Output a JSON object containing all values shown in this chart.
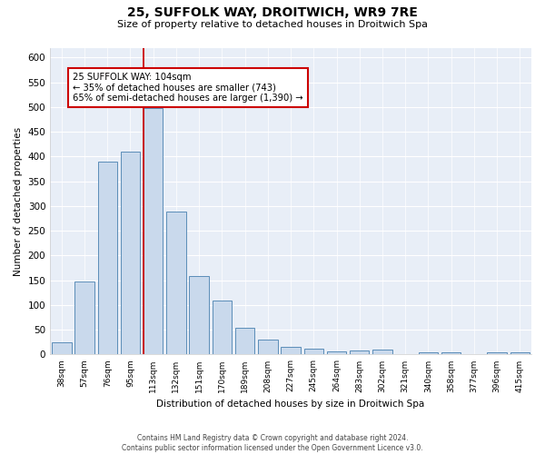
{
  "title": "25, SUFFOLK WAY, DROITWICH, WR9 7RE",
  "subtitle": "Size of property relative to detached houses in Droitwich Spa",
  "xlabel": "Distribution of detached houses by size in Droitwich Spa",
  "ylabel": "Number of detached properties",
  "bar_color": "#c9d9ec",
  "bar_edge_color": "#5b8db8",
  "background_color": "#e8eef7",
  "grid_color": "#ffffff",
  "categories": [
    "38sqm",
    "57sqm",
    "76sqm",
    "95sqm",
    "113sqm",
    "132sqm",
    "151sqm",
    "170sqm",
    "189sqm",
    "208sqm",
    "227sqm",
    "245sqm",
    "264sqm",
    "283sqm",
    "302sqm",
    "321sqm",
    "340sqm",
    "358sqm",
    "377sqm",
    "396sqm",
    "415sqm"
  ],
  "values": [
    25,
    148,
    390,
    410,
    498,
    288,
    159,
    109,
    54,
    30,
    16,
    12,
    7,
    9,
    10,
    0,
    4,
    4,
    0,
    4,
    4
  ],
  "ylim": [
    0,
    620
  ],
  "yticks": [
    0,
    50,
    100,
    150,
    200,
    250,
    300,
    350,
    400,
    450,
    500,
    550,
    600
  ],
  "property_label": "25 SUFFOLK WAY: 104sqm",
  "annotation_line1": "← 35% of detached houses are smaller (743)",
  "annotation_line2": "65% of semi-detached houses are larger (1,390) →",
  "vline_color": "#cc0000",
  "vline_position": 3.575,
  "footer_line1": "Contains HM Land Registry data © Crown copyright and database right 2024.",
  "footer_line2": "Contains public sector information licensed under the Open Government Licence v3.0.",
  "annotation_box_edge": "#cc0000",
  "fig_width": 6.0,
  "fig_height": 5.0,
  "dpi": 100
}
